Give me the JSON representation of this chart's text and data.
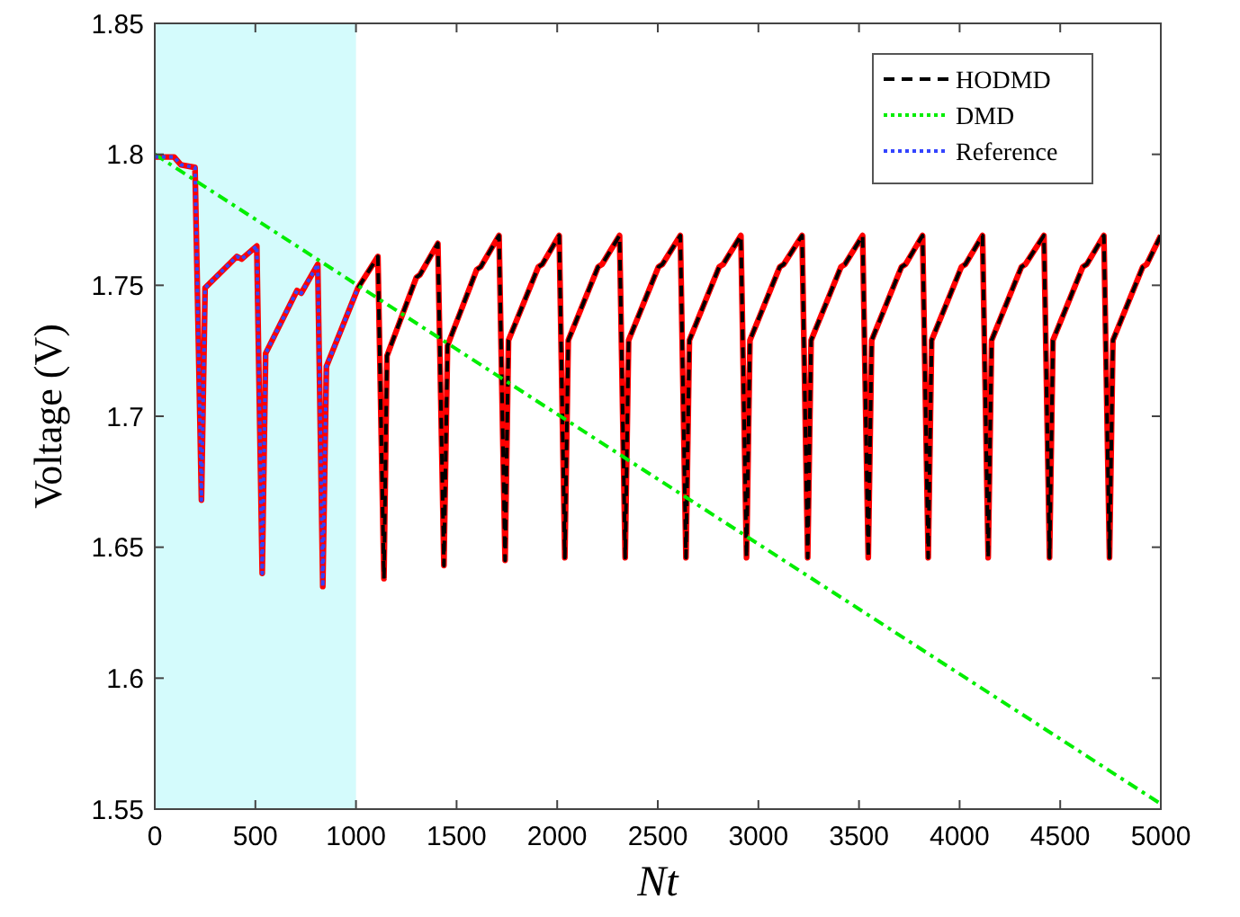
{
  "chart_data": {
    "type": "line",
    "xlabel": "Nt",
    "ylabel": "Voltage (V)",
    "xlim": [
      0,
      5000
    ],
    "ylim": [
      1.55,
      1.85
    ],
    "xticks": [
      0,
      500,
      1000,
      1500,
      2000,
      2500,
      3000,
      3500,
      4000,
      4500,
      5000
    ],
    "yticks": [
      1.55,
      1.6,
      1.65,
      1.7,
      1.75,
      1.8,
      1.85
    ],
    "grid": false,
    "legend": "top right",
    "bands": [
      {
        "axis": "x",
        "from": 0,
        "to": 1000,
        "color": "#d4fbfc"
      }
    ],
    "series": [
      {
        "color": "#ff0000",
        "line_style": "solid",
        "x": [
          0,
          96,
          130,
          200,
          232,
          250,
          408,
          432,
          507,
          534,
          551,
          707,
          728,
          810,
          835,
          853,
          1010,
          1109,
          1139,
          1154,
          1300,
          1318,
          1407,
          1437,
          1455,
          1600,
          1620,
          1711,
          1741,
          1758,
          1906,
          1926,
          2010,
          2038,
          2055,
          2203,
          2223,
          2310,
          2338,
          2355,
          2503,
          2523,
          2612,
          2640,
          2657,
          2805,
          2825,
          2913,
          2941,
          2958,
          3106,
          3126,
          3217,
          3245,
          3262,
          3410,
          3430,
          3518,
          3546,
          3563,
          3711,
          3731,
          3816,
          3844,
          3861,
          4009,
          4029,
          4114,
          4142,
          4159,
          4307,
          4327,
          4419,
          4447,
          4464,
          4612,
          4632,
          4717,
          4745,
          4762,
          4910,
          4930,
          5000
        ],
        "values": [
          1.799,
          1.799,
          1.796,
          1.795,
          1.668,
          1.749,
          1.761,
          1.76,
          1.765,
          1.64,
          1.724,
          1.748,
          1.747,
          1.758,
          1.635,
          1.719,
          1.749,
          1.761,
          1.638,
          1.723,
          1.753,
          1.754,
          1.766,
          1.643,
          1.727,
          1.756,
          1.757,
          1.769,
          1.645,
          1.729,
          1.757,
          1.758,
          1.769,
          1.646,
          1.729,
          1.757,
          1.758,
          1.769,
          1.646,
          1.729,
          1.757,
          1.758,
          1.769,
          1.646,
          1.729,
          1.757,
          1.758,
          1.769,
          1.646,
          1.729,
          1.757,
          1.758,
          1.769,
          1.646,
          1.729,
          1.757,
          1.758,
          1.769,
          1.646,
          1.729,
          1.757,
          1.758,
          1.769,
          1.646,
          1.729,
          1.757,
          1.758,
          1.769,
          1.646,
          1.729,
          1.757,
          1.758,
          1.769,
          1.646,
          1.729,
          1.757,
          1.758,
          1.769,
          1.646,
          1.729,
          1.757,
          1.758,
          1.769
        ]
      },
      {
        "name": "HODMD",
        "color": "#000000",
        "line_style": "dashed",
        "x": [
          1010,
          1109,
          1139,
          1154,
          1300,
          1318,
          1407,
          1437,
          1455,
          1600,
          1620,
          1711,
          1741,
          1758,
          1906,
          1926,
          2010,
          2038,
          2055,
          2203,
          2223,
          2310,
          2338,
          2355,
          2503,
          2523,
          2612,
          2640,
          2657,
          2805,
          2825,
          2913,
          2941,
          2958,
          3106,
          3126,
          3217,
          3245,
          3262,
          3410,
          3430,
          3518,
          3546,
          3563,
          3711,
          3731,
          3816,
          3844,
          3861,
          4009,
          4029,
          4114,
          4142,
          4159,
          4307,
          4327,
          4419,
          4447,
          4464,
          4612,
          4632,
          4717,
          4745,
          4762,
          4910,
          4930,
          5000
        ],
        "values": [
          1.749,
          1.761,
          1.638,
          1.723,
          1.753,
          1.754,
          1.766,
          1.643,
          1.727,
          1.756,
          1.757,
          1.769,
          1.645,
          1.729,
          1.757,
          1.758,
          1.769,
          1.646,
          1.729,
          1.757,
          1.758,
          1.769,
          1.646,
          1.729,
          1.757,
          1.758,
          1.769,
          1.646,
          1.729,
          1.757,
          1.758,
          1.769,
          1.646,
          1.729,
          1.757,
          1.758,
          1.769,
          1.646,
          1.729,
          1.757,
          1.758,
          1.769,
          1.646,
          1.729,
          1.757,
          1.758,
          1.769,
          1.646,
          1.729,
          1.757,
          1.758,
          1.769,
          1.646,
          1.729,
          1.757,
          1.758,
          1.769,
          1.646,
          1.729,
          1.757,
          1.758,
          1.769,
          1.646,
          1.729,
          1.757,
          1.758,
          1.769
        ]
      },
      {
        "name": "DMD",
        "color": "#00ee00",
        "line_style": "dotted",
        "x": [
          0,
          5000
        ],
        "values": [
          1.8,
          1.552
        ]
      },
      {
        "name": "Reference",
        "color": "#3344ff",
        "line_style": "dotted",
        "x": [
          0,
          96,
          130,
          200,
          232,
          250,
          408,
          432,
          507,
          534,
          551,
          707,
          728,
          810,
          835,
          853,
          1010
        ],
        "values": [
          1.799,
          1.799,
          1.796,
          1.795,
          1.668,
          1.749,
          1.761,
          1.76,
          1.765,
          1.64,
          1.724,
          1.748,
          1.747,
          1.758,
          1.635,
          1.719,
          1.749
        ]
      }
    ]
  }
}
